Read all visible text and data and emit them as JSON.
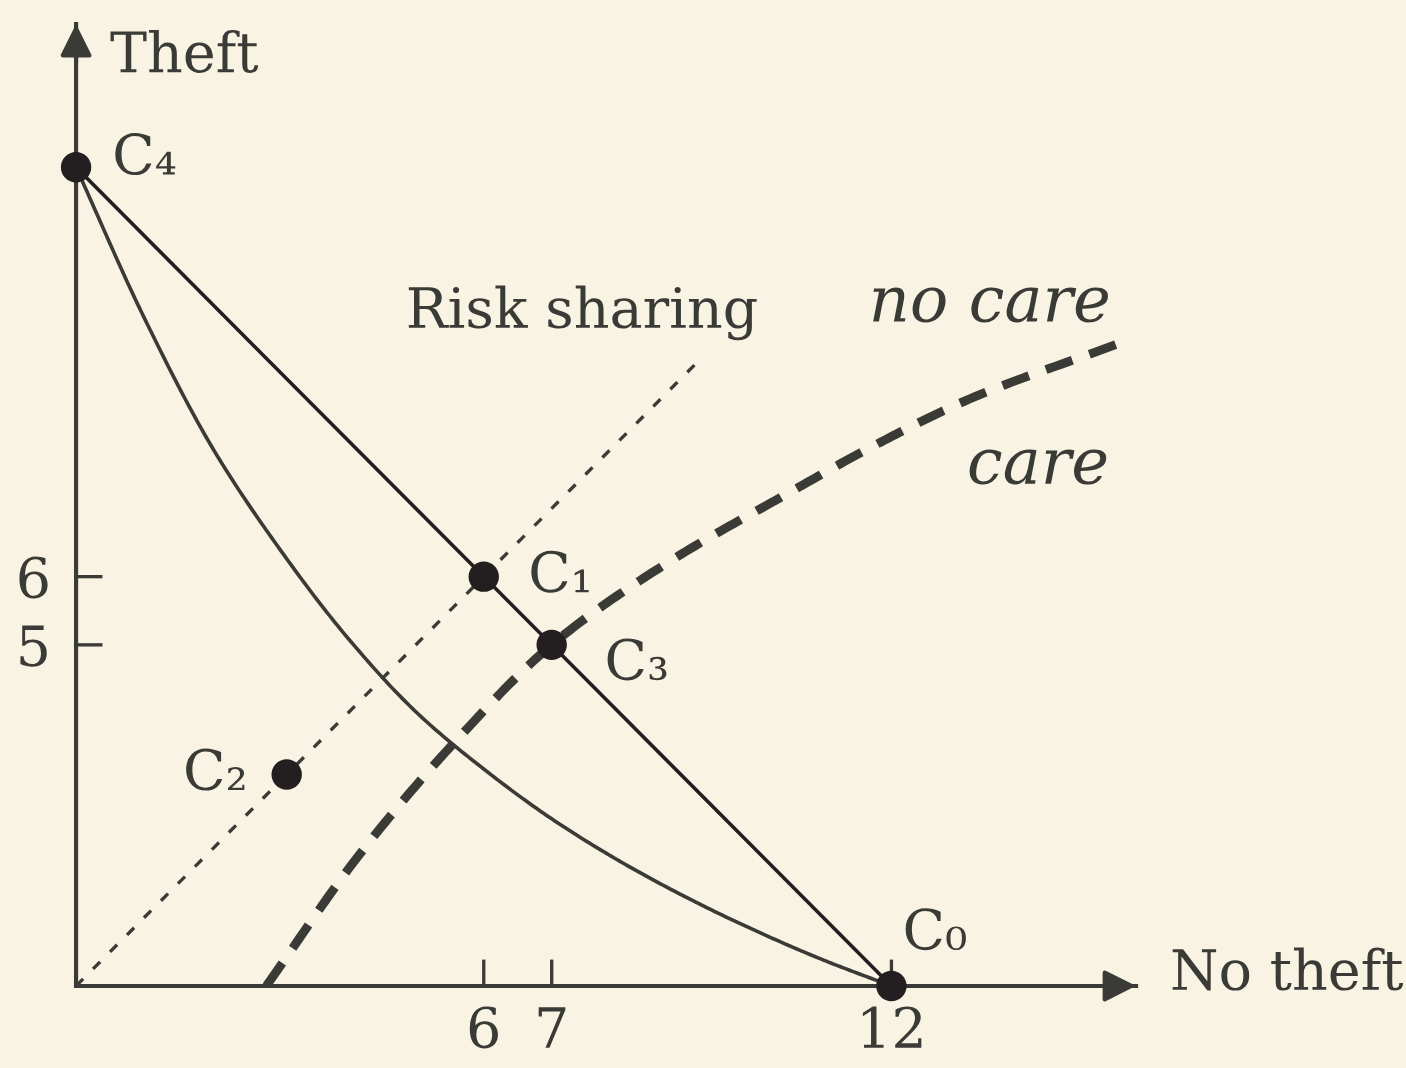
{
  "chart_data": {
    "type": "line",
    "xlabel": "No theft",
    "ylabel": "Theft",
    "xlim": [
      0,
      15.6
    ],
    "ylim": [
      0,
      14.1
    ],
    "xticks": [
      6,
      7,
      12
    ],
    "yticks": [
      5,
      6
    ],
    "series": [
      {
        "color": "#231f20",
        "line_style": "solid",
        "x": [
          0,
          12
        ],
        "values": [
          12,
          0
        ]
      },
      {
        "color": "#3a3a36",
        "line_style": "solid",
        "x": [
          0,
          1,
          2,
          3,
          4,
          5,
          6,
          7,
          8,
          9,
          10,
          11,
          12
        ],
        "values": [
          12,
          9.8,
          7.9,
          6.4,
          5.1,
          4.02,
          3.18,
          2.45,
          1.83,
          1.29,
          0.81,
          0.38,
          0
        ]
      },
      {
        "name": "Risk sharing",
        "color": "#3a3a36",
        "line_style": "dotted",
        "x": [
          0,
          9.1
        ],
        "values": [
          0,
          9.1
        ]
      },
      {
        "color": "#3a3a36",
        "line_style": "dashed",
        "x": [
          2.8,
          4.15,
          5.55,
          7,
          8.7,
          10.44,
          11.8,
          13.14,
          15.3
        ],
        "values": [
          0,
          1.9,
          3.55,
          5,
          6.2,
          7.2,
          7.95,
          8.6,
          9.4
        ]
      },
      {
        "type": "scatter",
        "color": "#231f20",
        "marker": "circle",
        "x": [
          12,
          6,
          3.1,
          7,
          0
        ],
        "values": [
          0,
          6,
          3.1,
          5,
          12
        ]
      }
    ],
    "annotations": [
      {
        "text": "C₀",
        "x": 12,
        "y": 0
      },
      {
        "text": "C₁",
        "x": 6,
        "y": 6
      },
      {
        "text": "C₂",
        "x": 3.1,
        "y": 3.1
      },
      {
        "text": "C₃",
        "x": 7,
        "y": 5
      },
      {
        "text": "C₄",
        "x": 0,
        "y": 12
      },
      "no care",
      "care"
    ]
  }
}
